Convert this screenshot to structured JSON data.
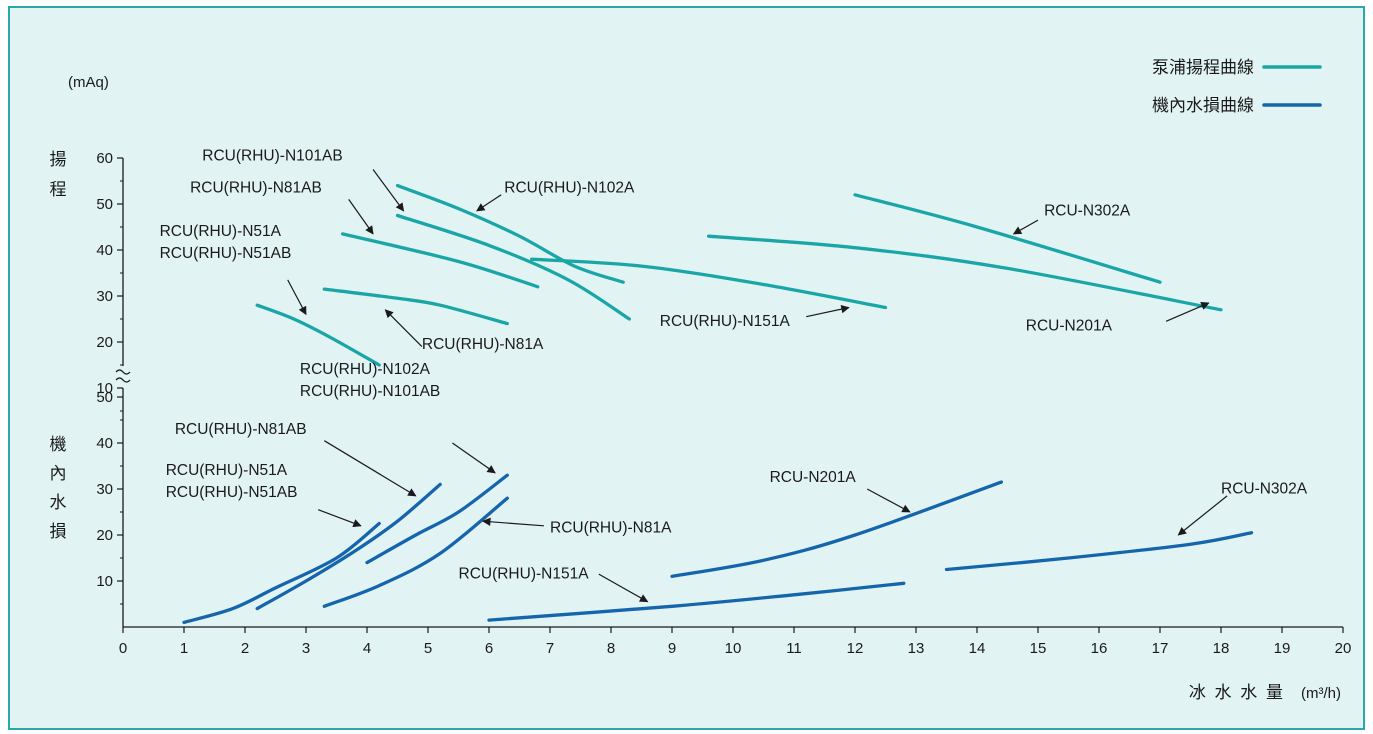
{
  "chart_data": {
    "type": "line",
    "x_title": "冰 水 水 量",
    "x_unit": "(m³/h)",
    "x_range": [
      0,
      20
    ],
    "x_ticks": [
      0,
      1,
      2,
      3,
      4,
      5,
      6,
      7,
      8,
      9,
      10,
      11,
      12,
      13,
      14,
      15,
      16,
      17,
      18,
      19,
      20
    ],
    "y_unit": "(mAq)",
    "top_panel": {
      "ylabel_chars": [
        "揚",
        "程"
      ],
      "y_ticks": [
        10,
        20,
        30,
        40,
        50,
        60
      ],
      "y_range": [
        0,
        60
      ]
    },
    "bottom_panel": {
      "ylabel_chars": [
        "機",
        "內",
        "水",
        "損"
      ],
      "y_ticks": [
        10,
        20,
        30,
        40,
        50
      ],
      "y_range": [
        0,
        50
      ]
    },
    "legend": [
      {
        "label": "泵浦揚程曲線",
        "color": "#1aa6a6"
      },
      {
        "label": "機內水損曲線",
        "color": "#1565ad"
      }
    ],
    "series": [
      {
        "panel": "top",
        "group": "泵浦揚程曲線",
        "color": "#1aa6a6",
        "points": [
          [
            2.2,
            28
          ],
          [
            2.8,
            25
          ],
          [
            3.4,
            21
          ],
          [
            4.2,
            15
          ]
        ]
      },
      {
        "panel": "top",
        "group": "泵浦揚程曲線",
        "color": "#1aa6a6",
        "points": [
          [
            3.3,
            31.5
          ],
          [
            4.5,
            29.5
          ],
          [
            5.2,
            28
          ],
          [
            6.3,
            24
          ]
        ]
      },
      {
        "panel": "top",
        "group": "泵浦揚程曲線",
        "color": "#1aa6a6",
        "points": [
          [
            3.6,
            43.5
          ],
          [
            5.5,
            37.5
          ],
          [
            6.8,
            32
          ]
        ]
      },
      {
        "panel": "top",
        "group": "泵浦揚程曲線",
        "color": "#1aa6a6",
        "points": [
          [
            4.5,
            47.5
          ],
          [
            6,
            41
          ],
          [
            7.3,
            33.5
          ],
          [
            8.3,
            25
          ]
        ]
      },
      {
        "panel": "top",
        "group": "泵浦揚程曲線",
        "color": "#1aa6a6",
        "points": [
          [
            4.5,
            54
          ],
          [
            5.5,
            49
          ],
          [
            6.5,
            43
          ],
          [
            7.4,
            36.5
          ],
          [
            8.2,
            33
          ]
        ]
      },
      {
        "panel": "top",
        "group": "泵浦揚程曲線",
        "color": "#1aa6a6",
        "points": [
          [
            6.7,
            38
          ],
          [
            8.5,
            36.5
          ],
          [
            10.5,
            32.5
          ],
          [
            12.5,
            27.5
          ]
        ]
      },
      {
        "panel": "top",
        "group": "泵浦揚程曲線",
        "color": "#1aa6a6",
        "points": [
          [
            9.6,
            43
          ],
          [
            12,
            40.5
          ],
          [
            14.5,
            36
          ],
          [
            18,
            27
          ]
        ]
      },
      {
        "panel": "top",
        "group": "泵浦揚程曲線",
        "color": "#1aa6a6",
        "points": [
          [
            12,
            52
          ],
          [
            14,
            45
          ],
          [
            17,
            33
          ]
        ]
      },
      {
        "panel": "bottom",
        "group": "機內水損曲線",
        "color": "#1565ad",
        "points": [
          [
            1,
            1
          ],
          [
            1.8,
            4
          ],
          [
            2.5,
            8.5
          ],
          [
            3.5,
            15
          ],
          [
            4.2,
            22.5
          ]
        ]
      },
      {
        "panel": "bottom",
        "group": "機內水損曲線",
        "color": "#1565ad",
        "points": [
          [
            2.2,
            4
          ],
          [
            3,
            10
          ],
          [
            3.8,
            16.5
          ],
          [
            4.5,
            23
          ],
          [
            5.2,
            31
          ]
        ]
      },
      {
        "panel": "bottom",
        "group": "機內水損曲線",
        "color": "#1565ad",
        "points": [
          [
            4,
            14
          ],
          [
            4.8,
            20
          ],
          [
            5.5,
            25
          ],
          [
            6.3,
            33
          ]
        ]
      },
      {
        "panel": "bottom",
        "group": "機內水損曲線",
        "color": "#1565ad",
        "points": [
          [
            3.3,
            4.5
          ],
          [
            4.2,
            9
          ],
          [
            5.2,
            16
          ],
          [
            6.3,
            28
          ]
        ]
      },
      {
        "panel": "bottom",
        "group": "機內水損曲線",
        "color": "#1565ad",
        "points": [
          [
            6,
            1.5
          ],
          [
            9,
            4.5
          ],
          [
            11,
            7
          ],
          [
            12.8,
            9.5
          ]
        ]
      },
      {
        "panel": "bottom",
        "group": "機內水損曲線",
        "color": "#1565ad",
        "points": [
          [
            9,
            11
          ],
          [
            10.5,
            14.5
          ],
          [
            12,
            20
          ],
          [
            14.4,
            31.5
          ]
        ]
      },
      {
        "panel": "bottom",
        "group": "機內水損曲線",
        "color": "#1565ad",
        "points": [
          [
            13.5,
            12.5
          ],
          [
            15.5,
            15
          ],
          [
            17.5,
            18
          ],
          [
            18.5,
            20.5
          ]
        ]
      }
    ],
    "annotations": [
      {
        "panel": "top",
        "lines": [
          "RCU(RHU)-N51A",
          "RCU(RHU)-N51AB"
        ],
        "anchor": "start",
        "pos": [
          0.6,
          43
        ],
        "arrow": [
          [
            2.7,
            33.5
          ],
          [
            3.0,
            26
          ]
        ]
      },
      {
        "panel": "top",
        "lines": [
          "RCU(RHU)-N81AB"
        ],
        "anchor": "start",
        "pos": [
          1.1,
          52.5
        ],
        "arrow": [
          [
            3.7,
            51
          ],
          [
            4.1,
            43.5
          ]
        ]
      },
      {
        "panel": "top",
        "lines": [
          "RCU(RHU)-N101AB"
        ],
        "anchor": "start",
        "pos": [
          1.3,
          59.5
        ],
        "arrow": [
          [
            4.1,
            57.5
          ],
          [
            4.6,
            48.5
          ]
        ]
      },
      {
        "panel": "top",
        "lines": [
          "RCU(RHU)-N102A"
        ],
        "anchor": "start",
        "pos": [
          6.25,
          52.5
        ],
        "arrow": [
          [
            6.2,
            52
          ],
          [
            5.8,
            48.5
          ]
        ]
      },
      {
        "panel": "top",
        "lines": [
          "RCU(RHU)-N81A"
        ],
        "anchor": "start",
        "pos": [
          4.9,
          18.5
        ],
        "arrow": [
          [
            4.9,
            19
          ],
          [
            4.3,
            27
          ]
        ]
      },
      {
        "panel": "top",
        "lines": [
          "RCU(RHU)-N151A"
        ],
        "anchor": "start",
        "pos": [
          8.8,
          23.5
        ],
        "arrow": [
          [
            11.2,
            25.5
          ],
          [
            11.9,
            27.5
          ]
        ]
      },
      {
        "panel": "top",
        "lines": [
          "RCU-N201A"
        ],
        "anchor": "start",
        "pos": [
          14.8,
          22.5
        ],
        "arrow": [
          [
            17.1,
            24.5
          ],
          [
            17.8,
            28.5
          ]
        ]
      },
      {
        "panel": "top",
        "lines": [
          "RCU-N302A"
        ],
        "anchor": "start",
        "pos": [
          15.1,
          47.5
        ],
        "arrow": [
          [
            15.0,
            46.5
          ],
          [
            14.6,
            43.5
          ]
        ]
      },
      {
        "panel": "bottom",
        "lines": [
          "RCU(RHU)-N102A",
          "RCU(RHU)-N101AB"
        ],
        "anchor": "start",
        "pos": [
          2.9,
          55
        ],
        "arrow": [
          [
            5.4,
            40
          ],
          [
            6.1,
            33.5
          ]
        ]
      },
      {
        "panel": "bottom",
        "lines": [
          "RCU(RHU)-N81AB"
        ],
        "anchor": "start",
        "pos": [
          0.85,
          42
        ],
        "arrow": [
          [
            3.3,
            40.5
          ],
          [
            4.8,
            28.5
          ]
        ]
      },
      {
        "panel": "bottom",
        "lines": [
          "RCU(RHU)-N51A",
          "RCU(RHU)-N51AB"
        ],
        "anchor": "start",
        "pos": [
          0.7,
          33
        ],
        "arrow": [
          [
            3.2,
            25.5
          ],
          [
            3.9,
            22
          ]
        ]
      },
      {
        "panel": "bottom",
        "lines": [
          "RCU(RHU)-N81A"
        ],
        "anchor": "start",
        "pos": [
          7.0,
          20.5
        ],
        "arrow": [
          [
            6.9,
            22
          ],
          [
            5.9,
            23
          ]
        ]
      },
      {
        "panel": "bottom",
        "lines": [
          "RCU(RHU)-N151A"
        ],
        "anchor": "start",
        "pos": [
          5.5,
          10.5
        ],
        "arrow": [
          [
            7.8,
            11.5
          ],
          [
            8.6,
            5.5
          ]
        ]
      },
      {
        "panel": "bottom",
        "lines": [
          "RCU-N201A"
        ],
        "anchor": "start",
        "pos": [
          10.6,
          31.5
        ],
        "arrow": [
          [
            12.2,
            30
          ],
          [
            12.9,
            25
          ]
        ]
      },
      {
        "panel": "bottom",
        "lines": [
          "RCU-N302A"
        ],
        "anchor": "start",
        "pos": [
          18.0,
          29
        ],
        "arrow": [
          [
            18.1,
            28.5
          ],
          [
            17.3,
            20
          ]
        ]
      }
    ]
  }
}
